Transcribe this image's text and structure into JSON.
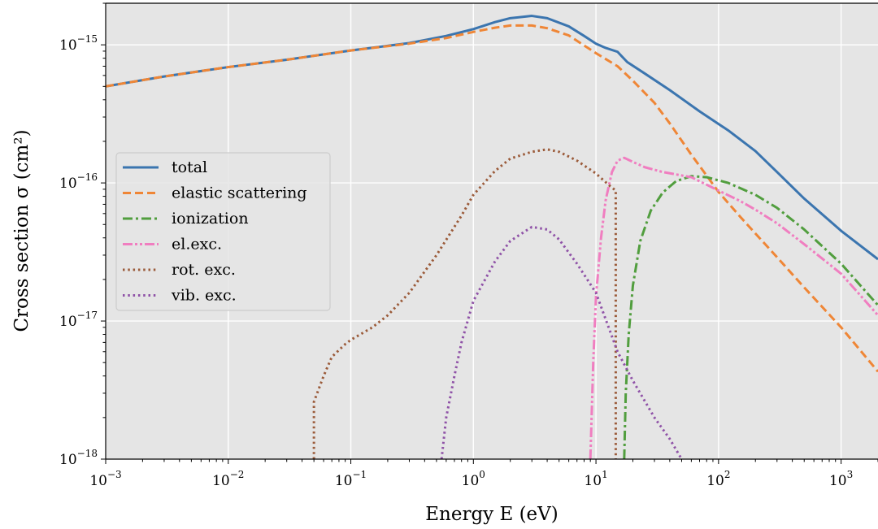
{
  "chart_data": {
    "type": "line",
    "xlabel": "Energy E (eV)",
    "ylabel": "Cross section σ (cm²)",
    "xscale": "log",
    "yscale": "log",
    "xlim": [
      0.001,
      2000
    ],
    "ylim": [
      1e-18,
      2e-15
    ],
    "grid": true,
    "legend_position": "center-left",
    "x_ticks": [
      {
        "value": 0.001,
        "base": "10",
        "exp": "−3"
      },
      {
        "value": 0.01,
        "base": "10",
        "exp": "−2"
      },
      {
        "value": 0.1,
        "base": "10",
        "exp": "−1"
      },
      {
        "value": 1,
        "base": "10",
        "exp": "0"
      },
      {
        "value": 10,
        "base": "10",
        "exp": "1"
      },
      {
        "value": 100,
        "base": "10",
        "exp": "2"
      },
      {
        "value": 1000,
        "base": "10",
        "exp": "3"
      }
    ],
    "y_ticks": [
      {
        "value": 1e-18,
        "base": "10",
        "exp": "−18"
      },
      {
        "value": 1e-17,
        "base": "10",
        "exp": "−17"
      },
      {
        "value": 1e-16,
        "base": "10",
        "exp": "−16"
      },
      {
        "value": 1e-15,
        "base": "10",
        "exp": "−15"
      }
    ],
    "series": [
      {
        "name": "total",
        "color": "#3b75af",
        "style": "solid",
        "points": [
          [
            0.001,
            5e-16
          ],
          [
            0.003,
            5.9e-16
          ],
          [
            0.01,
            6.9e-16
          ],
          [
            0.03,
            7.8e-16
          ],
          [
            0.1,
            9.1e-16
          ],
          [
            0.3,
            1.03e-15
          ],
          [
            0.6,
            1.16e-15
          ],
          [
            1.0,
            1.3e-15
          ],
          [
            1.5,
            1.46e-15
          ],
          [
            2.0,
            1.56e-15
          ],
          [
            3.0,
            1.62e-15
          ],
          [
            4.0,
            1.56e-15
          ],
          [
            6.0,
            1.36e-15
          ],
          [
            8.0,
            1.16e-15
          ],
          [
            10.0,
            1.02e-15
          ],
          [
            12.0,
            9.5e-16
          ],
          [
            15.0,
            8.9e-16
          ],
          [
            18.0,
            7.5e-16
          ],
          [
            25.0,
            6.2e-16
          ],
          [
            40.0,
            4.7e-16
          ],
          [
            70.0,
            3.3e-16
          ],
          [
            120.0,
            2.4e-16
          ],
          [
            200.0,
            1.7e-16
          ],
          [
            300.0,
            1.2e-16
          ],
          [
            500.0,
            7.7e-17
          ],
          [
            1000.0,
            4.5e-17
          ],
          [
            2000.0,
            2.8e-17
          ]
        ]
      },
      {
        "name": "elastic scattering",
        "color": "#ef8636",
        "style": "dashed",
        "points": [
          [
            0.001,
            5e-16
          ],
          [
            0.003,
            5.9e-16
          ],
          [
            0.01,
            6.9e-16
          ],
          [
            0.03,
            7.8e-16
          ],
          [
            0.1,
            9.1e-16
          ],
          [
            0.3,
            1.02e-15
          ],
          [
            0.6,
            1.12e-15
          ],
          [
            1.0,
            1.24e-15
          ],
          [
            1.5,
            1.33e-15
          ],
          [
            2.0,
            1.38e-15
          ],
          [
            3.0,
            1.38e-15
          ],
          [
            4.0,
            1.32e-15
          ],
          [
            6.0,
            1.17e-15
          ],
          [
            8.0,
            9.9e-16
          ],
          [
            10.0,
            8.7e-16
          ],
          [
            15.0,
            7e-16
          ],
          [
            20.0,
            5.5e-16
          ],
          [
            30.0,
            3.8e-16
          ],
          [
            40.0,
            2.7e-16
          ],
          [
            60.0,
            1.6e-16
          ],
          [
            80.0,
            1.13e-16
          ],
          [
            100.0,
            8.6e-17
          ],
          [
            150.0,
            5.7e-17
          ],
          [
            200.0,
            4.3e-17
          ],
          [
            300.0,
            2.9e-17
          ],
          [
            500.0,
            1.75e-17
          ],
          [
            1000.0,
            9e-18
          ],
          [
            2000.0,
            4.3e-18
          ]
        ]
      },
      {
        "name": "ionization",
        "color": "#519e3e",
        "style": "dashdot",
        "points": [
          [
            17.0,
            1e-18
          ],
          [
            17.5,
            3e-18
          ],
          [
            18.5,
            8e-18
          ],
          [
            20.0,
            1.8e-17
          ],
          [
            23.0,
            3.8e-17
          ],
          [
            28.0,
            6.3e-17
          ],
          [
            35.0,
            8.5e-17
          ],
          [
            45.0,
            1.03e-16
          ],
          [
            60.0,
            1.12e-16
          ],
          [
            80.0,
            1.1e-16
          ],
          [
            120.0,
            1e-16
          ],
          [
            200.0,
            8.2e-17
          ],
          [
            300.0,
            6.6e-17
          ],
          [
            500.0,
            4.6e-17
          ],
          [
            1000.0,
            2.6e-17
          ],
          [
            2000.0,
            1.3e-17
          ]
        ]
      },
      {
        "name": "el.exc.",
        "color": "#f07ec0",
        "style": "dashdotdot",
        "points": [
          [
            9.0,
            1e-18
          ],
          [
            9.5,
            5e-18
          ],
          [
            10.0,
            1.5e-17
          ],
          [
            11.0,
            4e-17
          ],
          [
            12.0,
            7.5e-17
          ],
          [
            13.5,
            1.2e-16
          ],
          [
            15.0,
            1.45e-16
          ],
          [
            17.0,
            1.52e-16
          ],
          [
            20.0,
            1.42e-16
          ],
          [
            25.0,
            1.3e-16
          ],
          [
            35.0,
            1.2e-16
          ],
          [
            60.0,
            1.1e-16
          ],
          [
            100.0,
            8.8e-17
          ],
          [
            150.0,
            7.4e-17
          ],
          [
            200.0,
            6.4e-17
          ],
          [
            300.0,
            5.1e-17
          ],
          [
            500.0,
            3.6e-17
          ],
          [
            1000.0,
            2.2e-17
          ],
          [
            2000.0,
            1.1e-17
          ]
        ]
      },
      {
        "name": "rot. exc.",
        "color": "#9b5b3a",
        "style": "dotted",
        "points": [
          [
            0.05,
            1e-18
          ],
          [
            0.05,
            2.6e-18
          ],
          [
            0.06,
            4e-18
          ],
          [
            0.07,
            5.5e-18
          ],
          [
            0.09,
            6.8e-18
          ],
          [
            0.1,
            7.3e-18
          ],
          [
            0.15,
            9e-18
          ],
          [
            0.2,
            1.1e-17
          ],
          [
            0.3,
            1.6e-17
          ],
          [
            0.5,
            3e-17
          ],
          [
            0.8,
            5.8e-17
          ],
          [
            1.0,
            8.2e-17
          ],
          [
            1.5,
            1.22e-16
          ],
          [
            2.0,
            1.5e-16
          ],
          [
            3.0,
            1.68e-16
          ],
          [
            4.0,
            1.75e-16
          ],
          [
            5.0,
            1.68e-16
          ],
          [
            7.0,
            1.45e-16
          ],
          [
            10.0,
            1.17e-16
          ],
          [
            13.0,
            9.5e-17
          ],
          [
            14.5,
            8.8e-17
          ],
          [
            14.5,
            1e-18
          ]
        ]
      },
      {
        "name": "vib. exc.",
        "color": "#8f52a7",
        "style": "dotted",
        "points": [
          [
            0.55,
            1e-18
          ],
          [
            0.6,
            2e-18
          ],
          [
            0.7,
            4e-18
          ],
          [
            0.8,
            7e-18
          ],
          [
            1.0,
            1.4e-17
          ],
          [
            1.5,
            2.7e-17
          ],
          [
            2.0,
            3.8e-17
          ],
          [
            3.0,
            4.8e-17
          ],
          [
            4.0,
            4.6e-17
          ],
          [
            5.0,
            3.9e-17
          ],
          [
            7.0,
            2.6e-17
          ],
          [
            10.0,
            1.6e-17
          ],
          [
            15.0,
            6e-18
          ],
          [
            20.0,
            3.7e-18
          ],
          [
            30.0,
            2e-18
          ],
          [
            40.0,
            1.4e-18
          ],
          [
            50.0,
            1e-18
          ]
        ]
      }
    ]
  }
}
